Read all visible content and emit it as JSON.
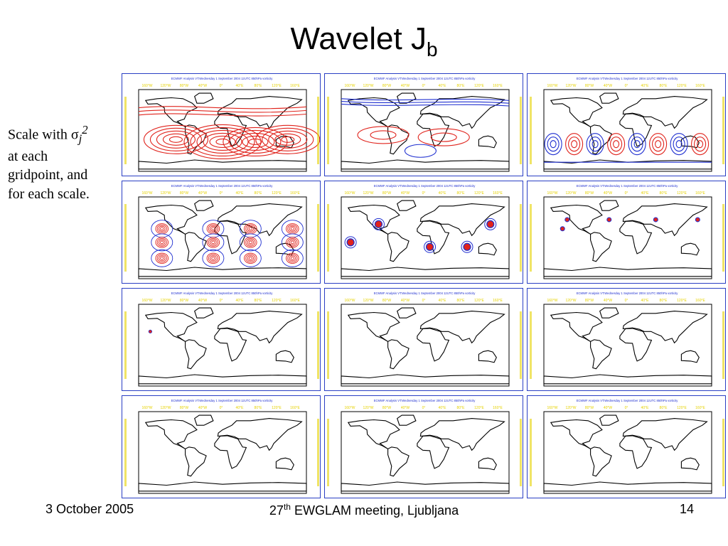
{
  "slide": {
    "title_main": "Wavelet J",
    "title_sub": "b",
    "note_scale_with": "Scale with σ",
    "note_sub": "j",
    "note_sup": "2",
    "note_line2": "at each",
    "note_line3": "gridpoint, and",
    "note_line4": "for each scale."
  },
  "footer": {
    "date": "3 October 2005",
    "meeting_prefix": "27",
    "meeting_sup": "th",
    "meeting_rest": " EWGLAM meeting, Ljubljana",
    "page": "14"
  },
  "panel_header": "ECMWF Analysis VT:Wednesday 1 September 2004 12UTC 850hPa vorticity",
  "lon_labels": [
    "160°W",
    "120°W",
    "80°W",
    "40°W",
    "0°",
    "40°E",
    "80°E",
    "120°E",
    "160°E"
  ],
  "colors": {
    "frame": "#2a3fc4",
    "positive": "#e0231c",
    "negative": "#1f2fd0",
    "axis_label": "#e6d200"
  },
  "panels": [
    {
      "row": 1,
      "col": 1,
      "pattern": "wide-red"
    },
    {
      "row": 1,
      "col": 2,
      "pattern": "mixed-low"
    },
    {
      "row": 1,
      "col": 3,
      "pattern": "alternating-blobs"
    },
    {
      "row": 2,
      "col": 1,
      "pattern": "red-cells"
    },
    {
      "row": 2,
      "col": 2,
      "pattern": "spots-medium"
    },
    {
      "row": 2,
      "col": 3,
      "pattern": "spots-small"
    },
    {
      "row": 3,
      "col": 1,
      "pattern": "tiny-dot"
    },
    {
      "row": 3,
      "col": 2,
      "pattern": "plain"
    },
    {
      "row": 3,
      "col": 3,
      "pattern": "plain"
    },
    {
      "row": 4,
      "col": 1,
      "pattern": "plain"
    },
    {
      "row": 4,
      "col": 2,
      "pattern": "plain"
    },
    {
      "row": 4,
      "col": 3,
      "pattern": "plain"
    }
  ]
}
